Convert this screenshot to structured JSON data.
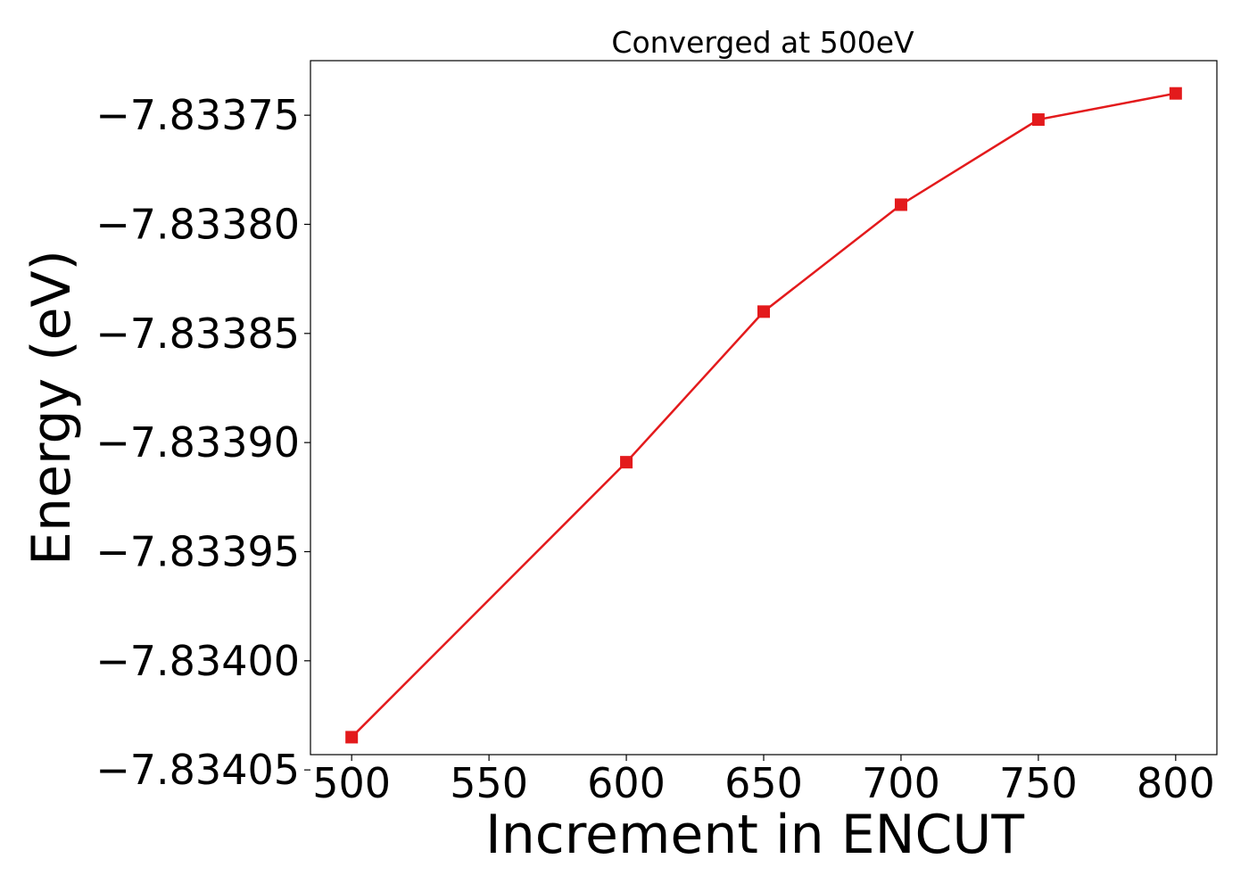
{
  "chart_data": {
    "type": "line",
    "title": "Converged at 500eV",
    "xlabel": "Increment in ENCUT",
    "ylabel": "Energy (eV)",
    "x": [
      500,
      600,
      650,
      700,
      750,
      800
    ],
    "series": [
      {
        "values": [
          -7.834035,
          -7.833909,
          -7.83384,
          -7.833791,
          -7.833752,
          -7.83374
        ],
        "color": "#e31a1c",
        "marker": "square"
      }
    ],
    "xticks": [
      500,
      550,
      600,
      650,
      700,
      750,
      800
    ],
    "xtick_labels": [
      "500",
      "550",
      "600",
      "650",
      "700",
      "750",
      "800"
    ],
    "yticks": [
      -7.83375,
      -7.8338,
      -7.83385,
      -7.8339,
      -7.83395,
      -7.834,
      -7.83405
    ],
    "ytick_labels": [
      "−7.83375",
      "−7.83380",
      "−7.83385",
      "−7.83390",
      "−7.83395",
      "−7.83400",
      "−7.83405"
    ],
    "xlim": [
      485,
      815
    ],
    "ylim": [
      -7.834043,
      -7.833725
    ],
    "grid": false,
    "legend": false
  }
}
